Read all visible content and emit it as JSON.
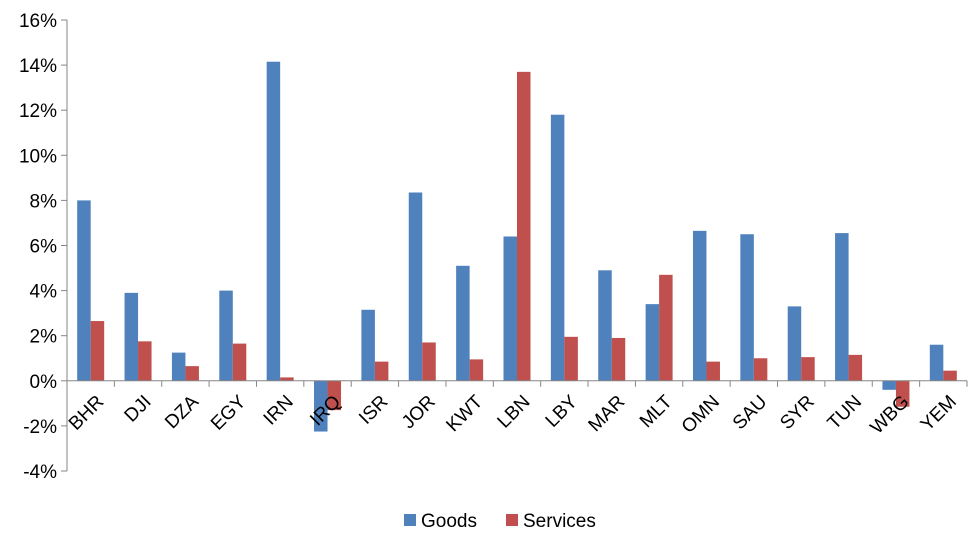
{
  "chart_data": {
    "type": "bar",
    "categories": [
      "BHR",
      "DJI",
      "DZA",
      "EGY",
      "IRN",
      "IRQ",
      "ISR",
      "JOR",
      "KWT",
      "LBN",
      "LBY",
      "MAR",
      "MLT",
      "OMN",
      "SAU",
      "SYR",
      "TUN",
      "WBG",
      "YEM"
    ],
    "series": [
      {
        "name": "Goods",
        "color": "#4f81bd",
        "values": [
          8.0,
          3.9,
          1.25,
          4.0,
          14.15,
          -2.25,
          3.15,
          8.35,
          5.1,
          6.4,
          11.8,
          4.9,
          3.4,
          6.65,
          6.5,
          3.3,
          6.55,
          -0.4,
          1.6
        ]
      },
      {
        "name": "Services",
        "color": "#c0504d",
        "values": [
          2.65,
          1.75,
          0.65,
          1.65,
          0.15,
          -1.3,
          0.85,
          1.7,
          0.95,
          13.7,
          1.95,
          1.9,
          4.7,
          0.85,
          1.0,
          1.05,
          1.15,
          -1.15,
          0.45
        ]
      }
    ],
    "ylim": [
      -4,
      16
    ],
    "yticks": [
      -4,
      -2,
      0,
      2,
      4,
      6,
      8,
      10,
      12,
      14,
      16
    ],
    "ytick_labels": [
      "-4%",
      "-2%",
      "0%",
      "2%",
      "4%",
      "6%",
      "8%",
      "10%",
      "12%",
      "14%",
      "16%"
    ],
    "title": "",
    "xlabel": "",
    "ylabel": "",
    "grid": false,
    "legend_position": "bottom"
  }
}
